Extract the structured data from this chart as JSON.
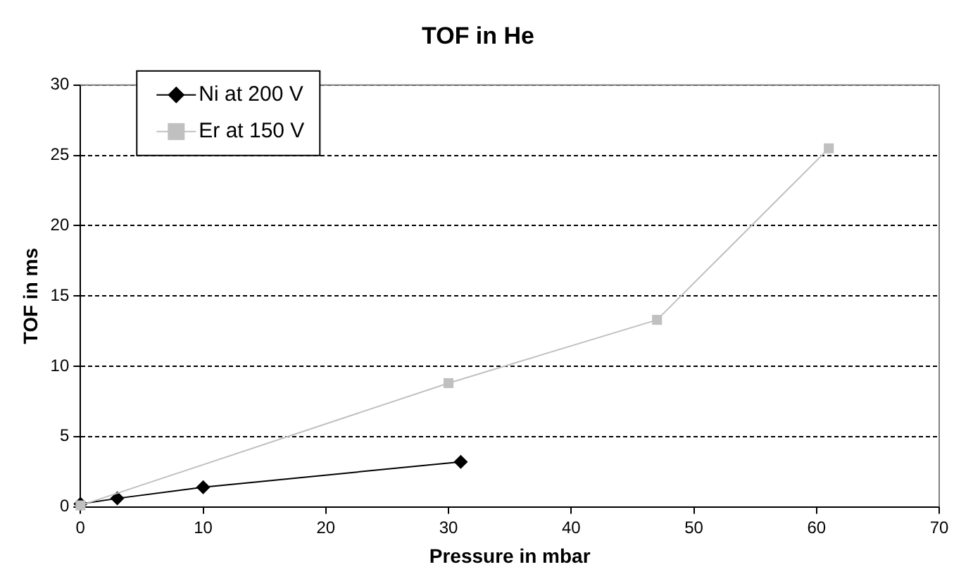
{
  "chart_data": {
    "type": "line",
    "title": "TOF in He",
    "xlabel": "Pressure in mbar",
    "ylabel": "TOF in ms",
    "xlim": [
      0,
      70
    ],
    "xticks": [
      0,
      10,
      20,
      30,
      40,
      50,
      60,
      70
    ],
    "ylim": [
      0,
      30
    ],
    "yticks": [
      0,
      5,
      10,
      15,
      20,
      25,
      30
    ],
    "grid": "y",
    "legend": "top left",
    "line_style": "solid",
    "series": [
      {
        "name": "Ni at 200 V",
        "color": "#000000",
        "marker": "diamond",
        "x": [
          0,
          3,
          10,
          31
        ],
        "values": [
          0.2,
          0.6,
          1.4,
          3.2
        ]
      },
      {
        "name": "Er at 150 V",
        "color": "#c0c0c0",
        "marker": "square",
        "x": [
          0,
          30,
          47,
          61
        ],
        "values": [
          0.1,
          8.8,
          13.3,
          25.5
        ]
      }
    ]
  }
}
